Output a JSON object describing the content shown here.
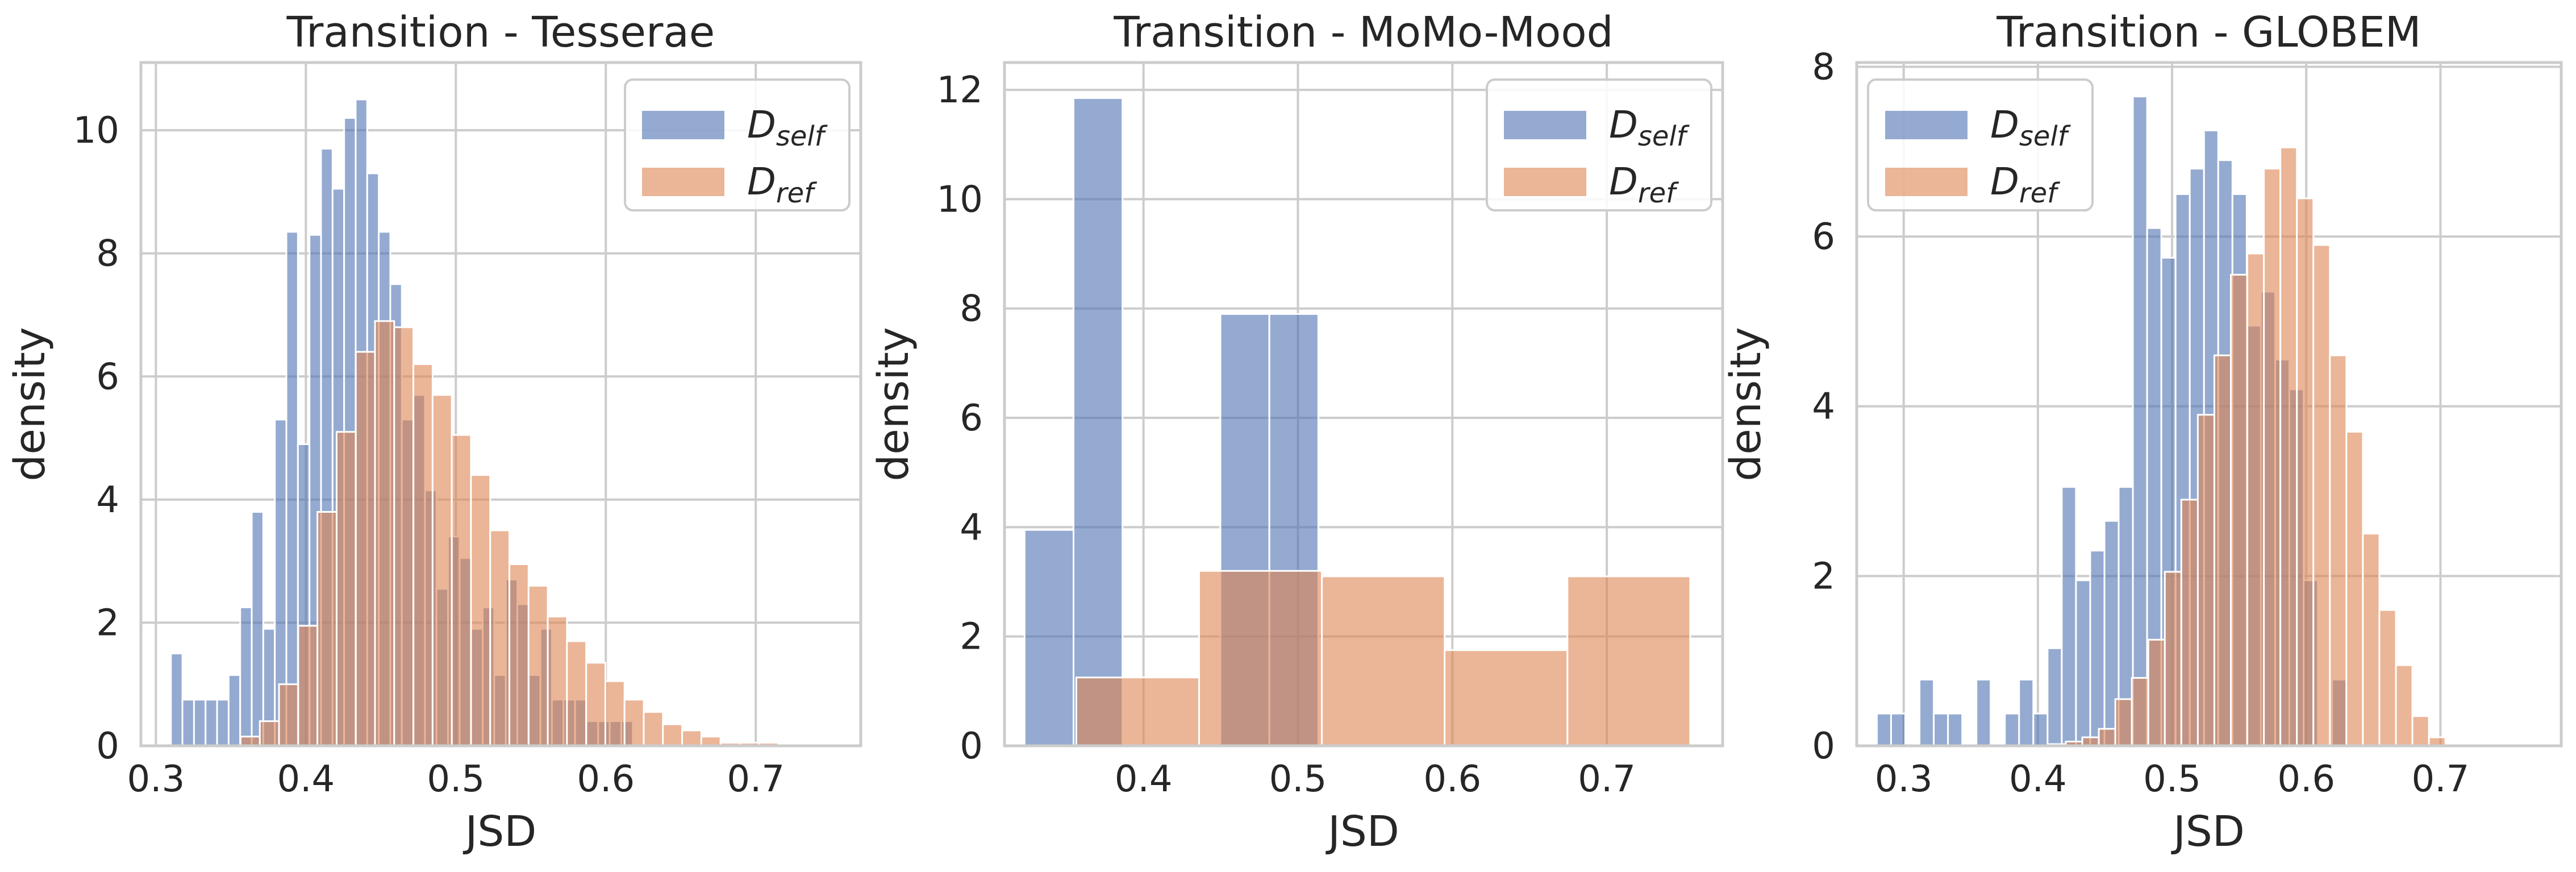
{
  "colors": {
    "self": "#4c72b0",
    "ref": "#dd8452"
  },
  "chart_data": [
    {
      "type": "histogram",
      "title": "Transition - Tesserae",
      "xlabel": "JSD",
      "ylabel": "density",
      "xlim": [
        0.29,
        0.77
      ],
      "ylim": [
        0,
        11.1
      ],
      "xticks": [
        0.3,
        0.4,
        0.5,
        0.6,
        0.7
      ],
      "yticks": [
        0,
        2,
        4,
        6,
        8,
        10
      ],
      "grid": true,
      "legend": {
        "placement": "top-right",
        "entries": [
          {
            "base": "D",
            "sub": "self"
          },
          {
            "base": "D",
            "sub": "ref"
          }
        ]
      },
      "series": [
        {
          "name": "D_self",
          "bin_start": 0.31,
          "bin_width": 0.0077,
          "densities": [
            1.5,
            0.75,
            0.75,
            0.75,
            0.75,
            1.15,
            2.25,
            3.8,
            1.9,
            5.3,
            8.35,
            4.9,
            8.3,
            9.7,
            9.05,
            10.2,
            10.5,
            9.3,
            8.35,
            7.5,
            5.3,
            5.7,
            4.15,
            2.55,
            3.4,
            3.05,
            1.9,
            2.25,
            1.15,
            2.7,
            2.3,
            1.15,
            1.9,
            0.75,
            0.75,
            0.75,
            0.4,
            0.4,
            0.4,
            0.4
          ]
        },
        {
          "name": "D_ref",
          "bin_start": 0.3565,
          "bin_width": 0.0128,
          "densities": [
            0.15,
            0.4,
            1.0,
            1.95,
            3.8,
            5.1,
            6.4,
            6.9,
            6.8,
            6.2,
            5.7,
            5.05,
            4.4,
            3.5,
            2.95,
            2.6,
            2.1,
            1.7,
            1.35,
            1.05,
            0.75,
            0.55,
            0.35,
            0.25,
            0.15,
            0.05,
            0.05,
            0.05
          ]
        }
      ]
    },
    {
      "type": "histogram",
      "title": "Transition - MoMo-Mood",
      "xlabel": "JSD",
      "ylabel": "density",
      "xlim": [
        0.31,
        0.775
      ],
      "ylim": [
        0,
        12.5
      ],
      "xticks": [
        0.4,
        0.5,
        0.6,
        0.7
      ],
      "yticks": [
        0,
        2,
        4,
        6,
        8,
        10,
        12
      ],
      "grid": true,
      "legend": {
        "placement": "top-right",
        "entries": [
          {
            "base": "D",
            "sub": "self"
          },
          {
            "base": "D",
            "sub": "ref"
          }
        ]
      },
      "series": [
        {
          "name": "D_self",
          "bin_start": 0.323,
          "bin_width": 0.0317,
          "densities": [
            3.95,
            11.85,
            0,
            0,
            7.9,
            7.9
          ]
        },
        {
          "name": "D_ref",
          "bin_start": 0.3565,
          "bin_width": 0.0795,
          "densities": [
            1.25,
            3.2,
            3.1,
            1.75,
            3.1
          ]
        }
      ]
    },
    {
      "type": "histogram",
      "title": "Transition - GLOBEM",
      "xlabel": "JSD",
      "ylabel": "density",
      "xlim": [
        0.265,
        0.79
      ],
      "ylim": [
        0,
        8.05
      ],
      "xticks": [
        0.3,
        0.4,
        0.5,
        0.6,
        0.7
      ],
      "yticks": [
        0,
        2,
        4,
        6,
        8
      ],
      "grid": true,
      "legend": {
        "placement": "top-left",
        "entries": [
          {
            "base": "D",
            "sub": "self"
          },
          {
            "base": "D",
            "sub": "ref"
          }
        ]
      },
      "series": [
        {
          "name": "D_self",
          "bin_start": 0.28,
          "bin_width": 0.0106,
          "densities": [
            0.38,
            0.38,
            0,
            0.78,
            0.38,
            0.38,
            0,
            0.78,
            0,
            0.38,
            0.78,
            0.38,
            1.15,
            3.05,
            1.95,
            2.3,
            2.65,
            3.05,
            7.65,
            6.1,
            5.75,
            6.5,
            6.8,
            7.25,
            6.9,
            6.5,
            4.95,
            5.35,
            4.55,
            4.2,
            1.95,
            0,
            0.78
          ]
        },
        {
          "name": "D_ref",
          "bin_start": 0.4085,
          "bin_width": 0.0123,
          "densities": [
            0.02,
            0.05,
            0.1,
            0.2,
            0.55,
            0.8,
            1.25,
            2.05,
            2.9,
            3.9,
            4.6,
            5.55,
            5.8,
            6.8,
            7.05,
            6.45,
            5.9,
            4.6,
            3.7,
            2.5,
            1.6,
            0.95,
            0.35,
            0.1
          ]
        }
      ]
    }
  ]
}
